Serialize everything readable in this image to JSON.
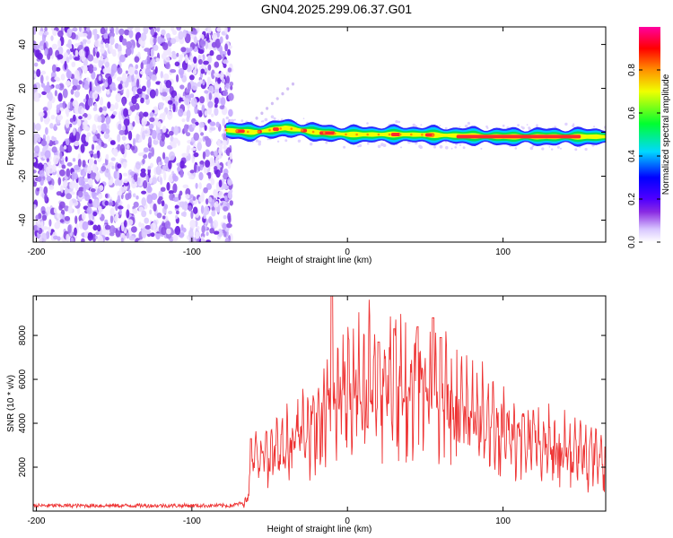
{
  "title": "GN04.2025.299.06.37.G01",
  "chart_data": [
    {
      "type": "heatmap",
      "name": "spectrogram",
      "xlabel": "Height of straight line (km)",
      "ylabel": "Frequency (Hz)",
      "xlim": [
        -202,
        166
      ],
      "ylim": [
        -50,
        48
      ],
      "xticks": [
        -200,
        -100,
        0,
        100
      ],
      "yticks": [
        -40,
        -20,
        0,
        20,
        40
      ],
      "noise_region_x": [
        -202,
        -78
      ],
      "signal_region_x": [
        -78,
        166
      ],
      "signal_center_hz": [
        {
          "x": -78,
          "f": 1
        },
        {
          "x": -60,
          "f": 0
        },
        {
          "x": -40,
          "f": 2
        },
        {
          "x": -20,
          "f": 0
        },
        {
          "x": 0,
          "f": -1
        },
        {
          "x": 40,
          "f": -1
        },
        {
          "x": 100,
          "f": -2
        },
        {
          "x": 166,
          "f": -2
        }
      ],
      "faint_streak": {
        "x": [
          -65,
          -35
        ],
        "f": [
          2,
          22
        ]
      },
      "colorbar": {
        "label": "Normalized spectral amplitude",
        "range": [
          0.0,
          1.0
        ],
        "ticks": [
          "0.0",
          "0.2",
          "0.4",
          "0.6",
          "0.8"
        ],
        "colors": [
          "#ffffff",
          "#d8c6ff",
          "#8a2be2",
          "#5000ff",
          "#0000ff",
          "#00d8ff",
          "#00ff30",
          "#f0ff00",
          "#ff9000",
          "#ff0000",
          "#ff00a0"
        ]
      }
    },
    {
      "type": "line",
      "name": "snr",
      "xlabel": "Height of straight line (km)",
      "ylabel": "SNR (10 * v/v)",
      "xlim": [
        -202,
        166
      ],
      "ylim": [
        0,
        9800
      ],
      "xticks": [
        -200,
        -100,
        0,
        100
      ],
      "yticks": [
        2000,
        4000,
        6000,
        8000
      ],
      "color": "#ee3333",
      "envelope": [
        {
          "x": -202,
          "v": 250
        },
        {
          "x": -75,
          "v": 250
        },
        {
          "x": -65,
          "v": 400
        },
        {
          "x": -62,
          "v": 2400
        },
        {
          "x": -50,
          "v": 2600
        },
        {
          "x": -40,
          "v": 3000
        },
        {
          "x": -30,
          "v": 3600
        },
        {
          "x": -20,
          "v": 4300
        },
        {
          "x": -10,
          "v": 5000
        },
        {
          "x": 0,
          "v": 5600
        },
        {
          "x": 10,
          "v": 6100
        },
        {
          "x": 20,
          "v": 6000
        },
        {
          "x": 30,
          "v": 5700
        },
        {
          "x": 40,
          "v": 5600
        },
        {
          "x": 50,
          "v": 5500
        },
        {
          "x": 60,
          "v": 5200
        },
        {
          "x": 80,
          "v": 4500
        },
        {
          "x": 100,
          "v": 3800
        },
        {
          "x": 120,
          "v": 3200
        },
        {
          "x": 140,
          "v": 2800
        },
        {
          "x": 166,
          "v": 2500
        }
      ],
      "peaks": [
        {
          "x": -62,
          "v": 3300
        },
        {
          "x": -10,
          "v": 9800
        },
        {
          "x": 20,
          "v": 7700
        },
        {
          "x": 30,
          "v": 8300
        },
        {
          "x": 45,
          "v": 8400
        },
        {
          "x": 55,
          "v": 8800
        },
        {
          "x": 60,
          "v": 7900
        }
      ]
    }
  ]
}
